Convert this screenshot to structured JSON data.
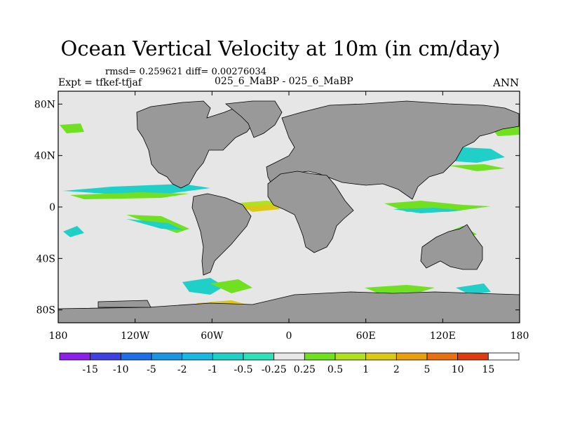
{
  "title": "Ocean Vertical Velocity at 10m (in cm/day)",
  "stats": "rmsd= 0.259621 diff= 0.00276034",
  "expt": "Expt = tfkef-tfjaf",
  "case": "025_6_MaBP - 025_6_MaBP",
  "season": "ANN",
  "axes": {
    "lon_ticks": [
      "180",
      "120W",
      "60W",
      "0",
      "60E",
      "120E",
      "180"
    ],
    "lat_ticks": [
      "80N",
      "40N",
      "0",
      "40S",
      "80S"
    ],
    "lon_values": [
      -180,
      -120,
      -60,
      0,
      60,
      120,
      180
    ],
    "lat_values": [
      80,
      40,
      0,
      -40,
      -80
    ],
    "lon_range": [
      -180,
      180
    ],
    "lat_range": [
      -90,
      90
    ]
  },
  "colorbar": {
    "labels": [
      "-15",
      "-10",
      "-5",
      "-2",
      "-1",
      "-0.5",
      "-0.25",
      "0.25",
      "0.5",
      "1",
      "2",
      "5",
      "10",
      "15"
    ],
    "colors": [
      "#8c20e8",
      "#4040e0",
      "#1f6ee8",
      "#1a96e0",
      "#18b8e0",
      "#20d0c8",
      "#30e0b8",
      "#e8e8e8",
      "#70e020",
      "#b0e020",
      "#dcc818",
      "#e8a010",
      "#e87010",
      "#e03a10",
      "#ffffff"
    ]
  },
  "colors": {
    "land": "#999999",
    "ocean": "#e6e6e6"
  }
}
